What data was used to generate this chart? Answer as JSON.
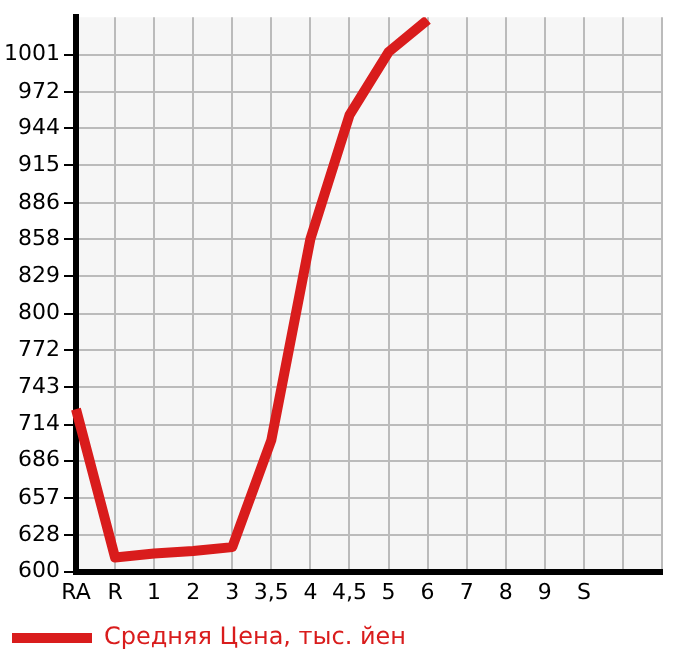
{
  "chart_data": {
    "type": "line",
    "categories": [
      "RA",
      "R",
      "1",
      "2",
      "3",
      "3,5",
      "4",
      "4,5",
      "5",
      "6",
      "7",
      "8",
      "9",
      "S",
      null,
      null
    ],
    "series": [
      {
        "name": "Средняя Цена, тыс. йен",
        "color": "#d91c1c",
        "values": [
          726,
          611,
          614,
          616,
          619,
          702,
          858,
          954,
          1003,
          1028,
          null,
          null,
          null,
          null,
          null,
          null
        ]
      }
    ],
    "ylim": [
      600,
      1030
    ],
    "yticks": [
      600,
      628,
      657,
      686,
      714,
      743,
      772,
      800,
      829,
      858,
      886,
      915,
      944,
      972,
      1001
    ],
    "grid": true,
    "legend": "bottom",
    "marker": "none",
    "line_style": "solid"
  }
}
